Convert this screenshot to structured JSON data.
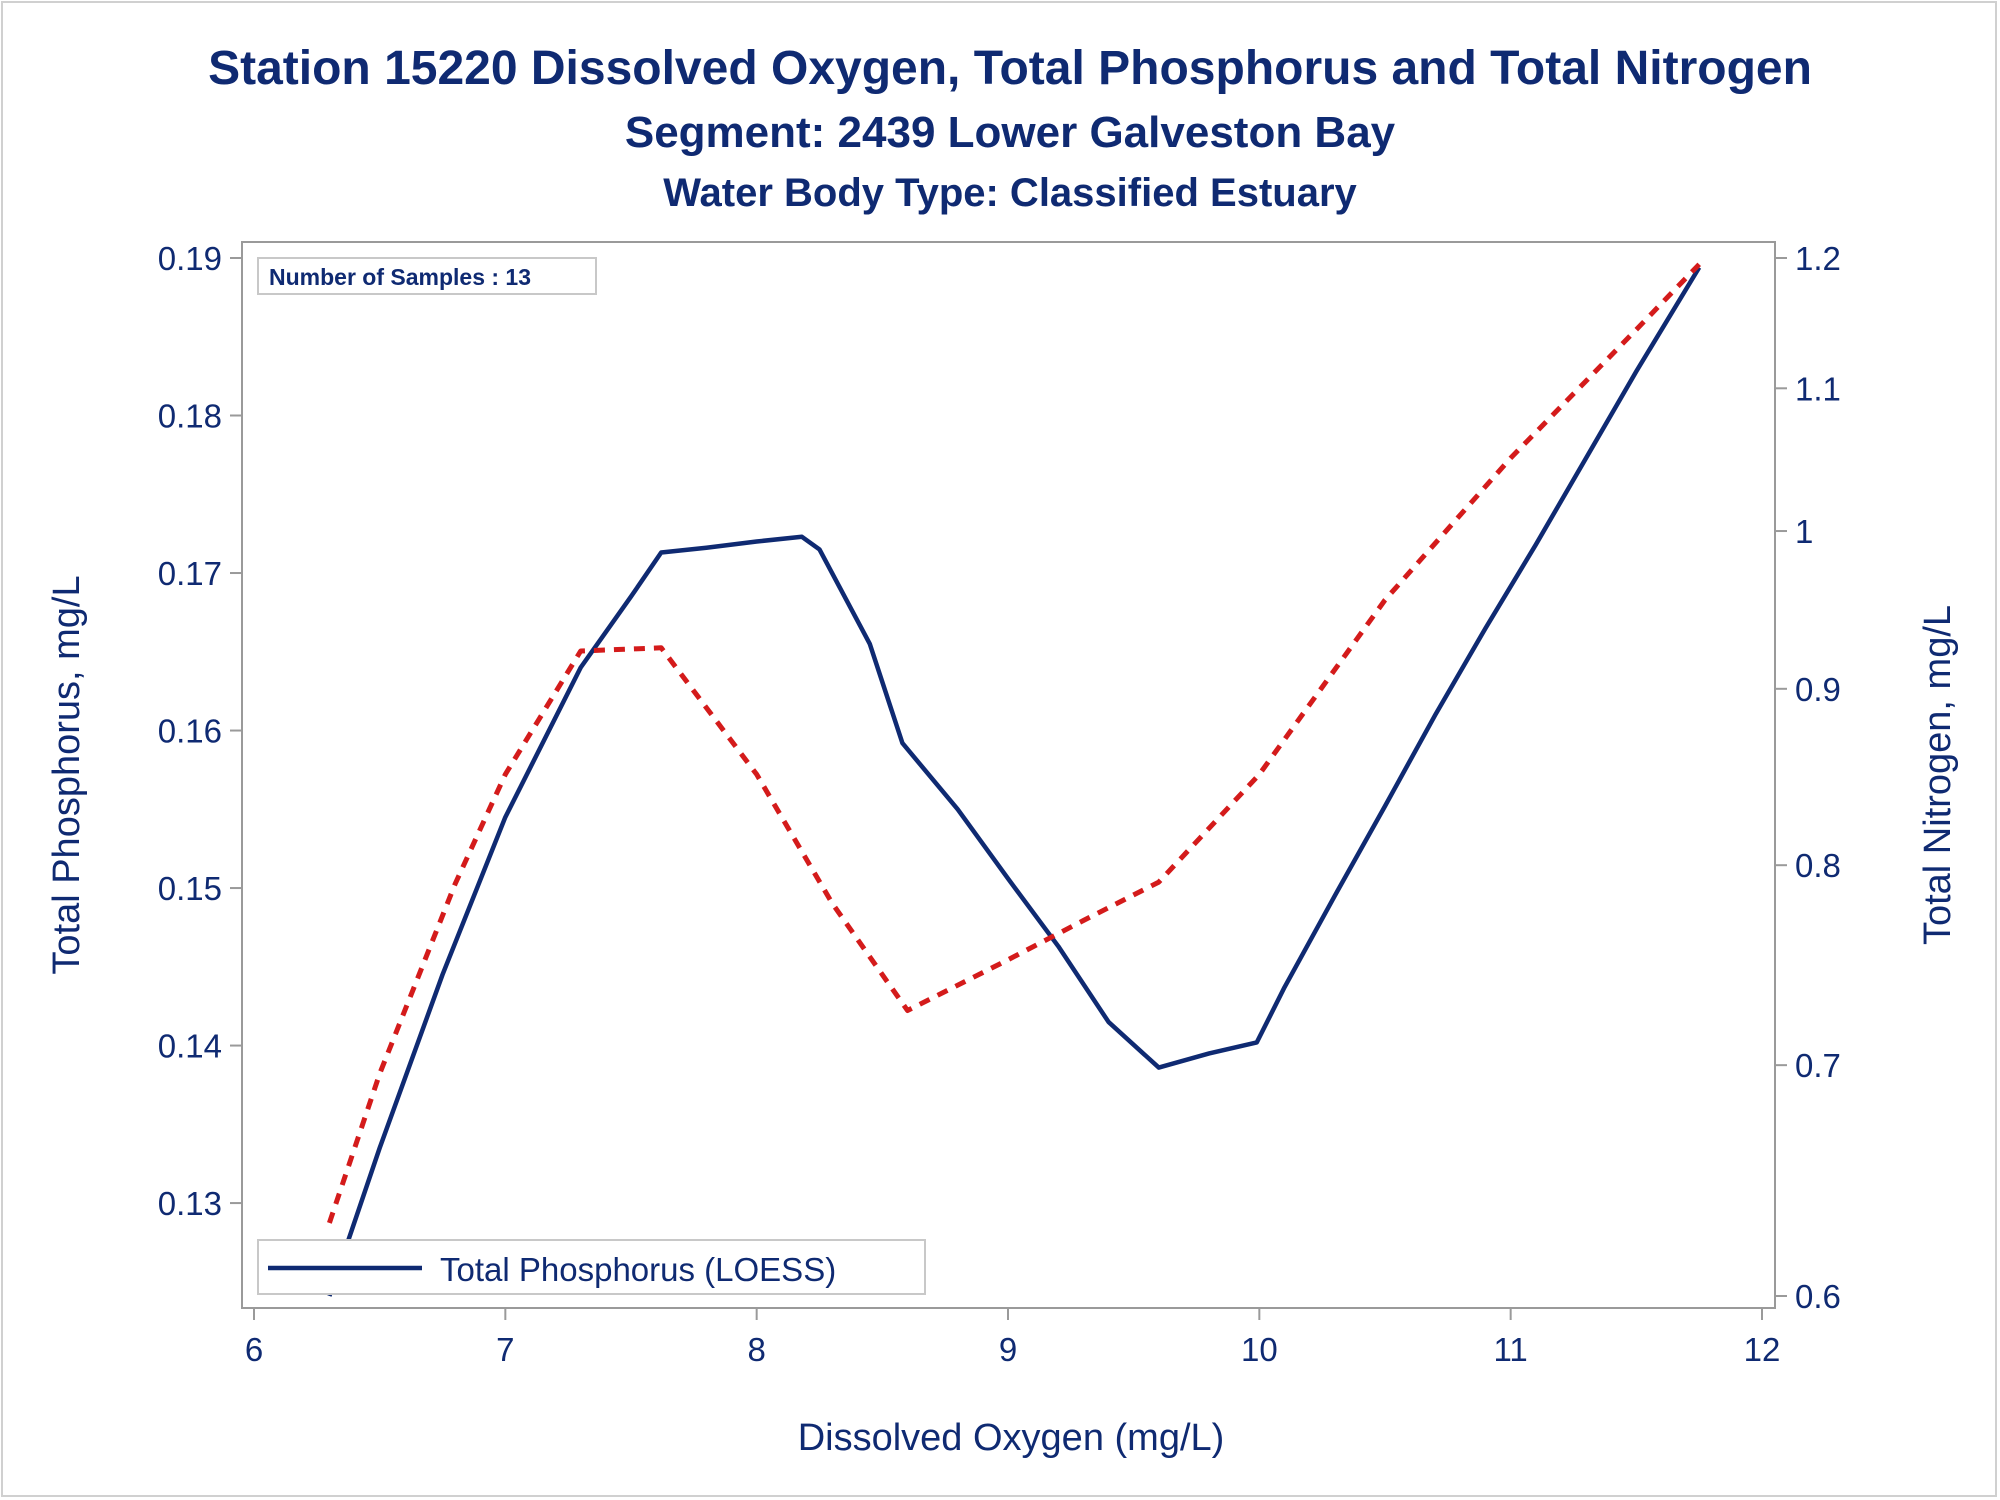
{
  "chart_data": {
    "type": "line",
    "title": "Station 15220  Dissolved Oxygen, Total Phosphorus and Total Nitrogen",
    "subtitle": "Segment: 2439  Lower Galveston Bay",
    "subtitle2": "Water Body Type: Classified Estuary",
    "xlabel": "Dissolved Oxygen (mg/L)",
    "ylabel": "Total Phosphorus, mg/L",
    "y2label": "Total Nitrogen, mg/L",
    "xlim": [
      6,
      12
    ],
    "ylim": [
      0.1241,
      0.19
    ],
    "y2lim": [
      0.6,
      1.2
    ],
    "y2scale": "log",
    "xticks": [
      "6",
      "7",
      "8",
      "9",
      "10",
      "11",
      "12"
    ],
    "yticks": [
      "0.13",
      "0.14",
      "0.15",
      "0.16",
      "0.17",
      "0.18",
      "0.19"
    ],
    "y2ticks": [
      "0.6",
      "0.7",
      "0.8",
      "0.9",
      "1",
      "1.1",
      "1.2"
    ],
    "annotation": "Number of Samples : 13",
    "legend_position": "bottom-left",
    "series": [
      {
        "name": "Total Phosphorus (LOESS)",
        "axis": "left",
        "style": "solid",
        "color": "#0f2a72",
        "x": [
          6.3,
          6.5,
          6.75,
          7.0,
          7.3,
          7.5,
          7.62,
          7.8,
          8.0,
          8.18,
          8.25,
          8.45,
          8.58,
          8.8,
          9.0,
          9.2,
          9.4,
          9.6,
          9.8,
          9.99,
          10.1,
          10.3,
          10.5,
          10.7,
          10.9,
          11.1,
          11.3,
          11.5,
          11.75
        ],
        "y": [
          0.1241,
          0.1335,
          0.1445,
          0.1545,
          0.164,
          0.1685,
          0.1713,
          0.1716,
          0.172,
          0.1723,
          0.1715,
          0.1655,
          0.1592,
          0.155,
          0.1506,
          0.1463,
          0.1415,
          0.1386,
          0.1395,
          0.1402,
          0.1437,
          0.1495,
          0.1552,
          0.161,
          0.1665,
          0.1718,
          0.1773,
          0.1828,
          0.1894
        ]
      },
      {
        "name": "",
        "axis": "right",
        "style": "dashed",
        "color": "#d41b1b",
        "x": [
          6.3,
          6.5,
          6.8,
          7.0,
          7.3,
          7.62,
          8.0,
          8.3,
          8.6,
          9.0,
          9.3,
          9.6,
          10.0,
          10.5,
          11.0,
          11.5,
          11.75
        ],
        "y": [
          0.63,
          0.696,
          0.79,
          0.85,
          0.923,
          0.925,
          0.85,
          0.78,
          0.726,
          0.751,
          0.771,
          0.791,
          0.85,
          0.955,
          1.05,
          1.144,
          1.195
        ]
      }
    ]
  }
}
